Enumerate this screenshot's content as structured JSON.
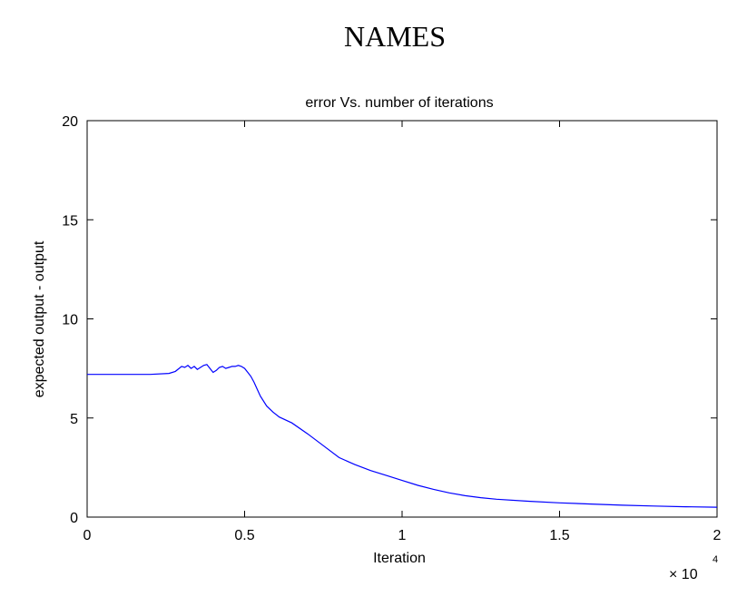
{
  "header": {
    "title": "NAMES"
  },
  "chart_data": {
    "type": "line",
    "title": "error Vs. number of iterations",
    "xlabel": "Iteration",
    "ylabel": "expected output - output",
    "x_multiplier_label": "× 10",
    "x_multiplier_exponent": "4",
    "xlim": [
      0,
      2
    ],
    "ylim": [
      0,
      20
    ],
    "xticks": [
      0,
      0.5,
      1,
      1.5,
      2
    ],
    "xtick_labels": [
      "0",
      "0.5",
      "1",
      "1.5",
      "2"
    ],
    "yticks": [
      0,
      5,
      10,
      15,
      20
    ],
    "ytick_labels": [
      "0",
      "5",
      "10",
      "15",
      "20"
    ],
    "grid": false,
    "series": [
      {
        "color": "#0000ff",
        "x": [
          0,
          0.1,
          0.2,
          0.26,
          0.28,
          0.3,
          0.31,
          0.32,
          0.33,
          0.34,
          0.35,
          0.36,
          0.37,
          0.38,
          0.39,
          0.4,
          0.41,
          0.42,
          0.43,
          0.44,
          0.45,
          0.46,
          0.47,
          0.48,
          0.49,
          0.5,
          0.51,
          0.52,
          0.53,
          0.54,
          0.55,
          0.57,
          0.59,
          0.61,
          0.65,
          0.7,
          0.75,
          0.8,
          0.85,
          0.9,
          0.95,
          1.0,
          1.05,
          1.1,
          1.15,
          1.2,
          1.25,
          1.3,
          1.4,
          1.5,
          1.6,
          1.7,
          1.8,
          1.9,
          2.0
        ],
        "y": [
          7.2,
          7.2,
          7.2,
          7.25,
          7.35,
          7.6,
          7.55,
          7.65,
          7.5,
          7.6,
          7.45,
          7.55,
          7.65,
          7.7,
          7.5,
          7.3,
          7.4,
          7.55,
          7.6,
          7.5,
          7.55,
          7.6,
          7.6,
          7.65,
          7.6,
          7.5,
          7.3,
          7.1,
          6.8,
          6.45,
          6.1,
          5.6,
          5.3,
          5.05,
          4.75,
          4.2,
          3.6,
          3.0,
          2.65,
          2.35,
          2.1,
          1.85,
          1.6,
          1.4,
          1.22,
          1.08,
          0.98,
          0.9,
          0.8,
          0.72,
          0.66,
          0.6,
          0.56,
          0.52,
          0.5
        ]
      }
    ]
  }
}
